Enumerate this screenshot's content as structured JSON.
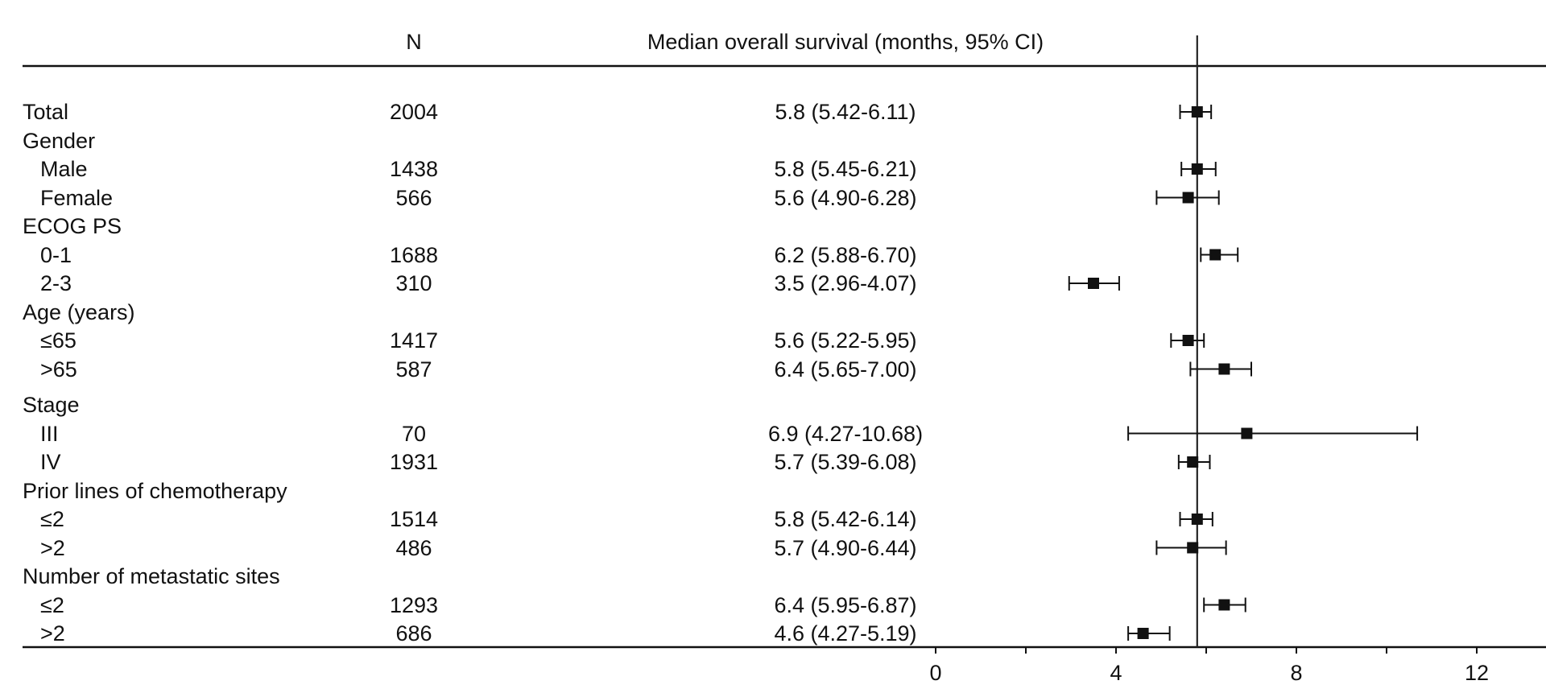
{
  "chart_data": {
    "type": "forest",
    "headers": {
      "n": "N",
      "estimate": "Median overall survival (months, 95% CI)"
    },
    "reference_line": 5.8,
    "xlim": [
      0,
      14
    ],
    "xticks": [
      0,
      2,
      4,
      6,
      8,
      10,
      12
    ],
    "xtick_labels": [
      "0",
      "",
      "4",
      "",
      "8",
      "",
      "12"
    ],
    "rows": [
      {
        "label": "Total",
        "indent": false,
        "n": "2004",
        "ci_text": "5.8 (5.42-6.11)",
        "median": 5.8,
        "low": 5.42,
        "high": 6.11
      },
      {
        "label": "Gender",
        "indent": false,
        "group": true
      },
      {
        "label": "Male",
        "indent": true,
        "n": "1438",
        "ci_text": "5.8 (5.45-6.21)",
        "median": 5.8,
        "low": 5.45,
        "high": 6.21
      },
      {
        "label": "Female",
        "indent": true,
        "n": "566",
        "ci_text": "5.6 (4.90-6.28)",
        "median": 5.6,
        "low": 4.9,
        "high": 6.28
      },
      {
        "label": "ECOG PS",
        "indent": false,
        "group": true
      },
      {
        "label": "0-1",
        "indent": true,
        "n": "1688",
        "ci_text": "6.2 (5.88-6.70)",
        "median": 6.2,
        "low": 5.88,
        "high": 6.7
      },
      {
        "label": "2-3",
        "indent": true,
        "n": "310",
        "ci_text": "3.5 (2.96-4.07)",
        "median": 3.5,
        "low": 2.96,
        "high": 4.07
      },
      {
        "label": "Age (years)",
        "indent": false,
        "group": true
      },
      {
        "label": "≤65",
        "indent": true,
        "n": "1417",
        "ci_text": "5.6 (5.22-5.95)",
        "median": 5.6,
        "low": 5.22,
        "high": 5.95
      },
      {
        "label": ">65",
        "indent": true,
        "n": "587",
        "ci_text": "6.4 (5.65-7.00)",
        "median": 6.4,
        "low": 5.65,
        "high": 7.0
      },
      {
        "label": "Stage",
        "indent": false,
        "group": true
      },
      {
        "label": "III",
        "indent": true,
        "n": "70",
        "ci_text": "6.9 (4.27-10.68)",
        "median": 6.9,
        "low": 4.27,
        "high": 10.68
      },
      {
        "label": "IV",
        "indent": true,
        "n": "1931",
        "ci_text": "5.7 (5.39-6.08)",
        "median": 5.7,
        "low": 5.39,
        "high": 6.08
      },
      {
        "label": "Prior lines of chemotherapy",
        "indent": false,
        "group": true
      },
      {
        "label": "≤2",
        "indent": true,
        "n": "1514",
        "ci_text": "5.8 (5.42-6.14)",
        "median": 5.8,
        "low": 5.42,
        "high": 6.14
      },
      {
        "label": ">2",
        "indent": true,
        "n": "486",
        "ci_text": "5.7 (4.90-6.44)",
        "median": 5.7,
        "low": 4.9,
        "high": 6.44
      },
      {
        "label": "Number of metastatic sites",
        "indent": false,
        "group": true
      },
      {
        "label": "≤2",
        "indent": true,
        "n": "1293",
        "ci_text": "6.4 (5.95-6.87)",
        "median": 6.4,
        "low": 5.95,
        "high": 6.87
      },
      {
        "label": ">2",
        "indent": true,
        "n": "686",
        "ci_text": "4.6 (4.27-5.19)",
        "median": 4.6,
        "low": 4.27,
        "high": 5.19
      }
    ]
  }
}
